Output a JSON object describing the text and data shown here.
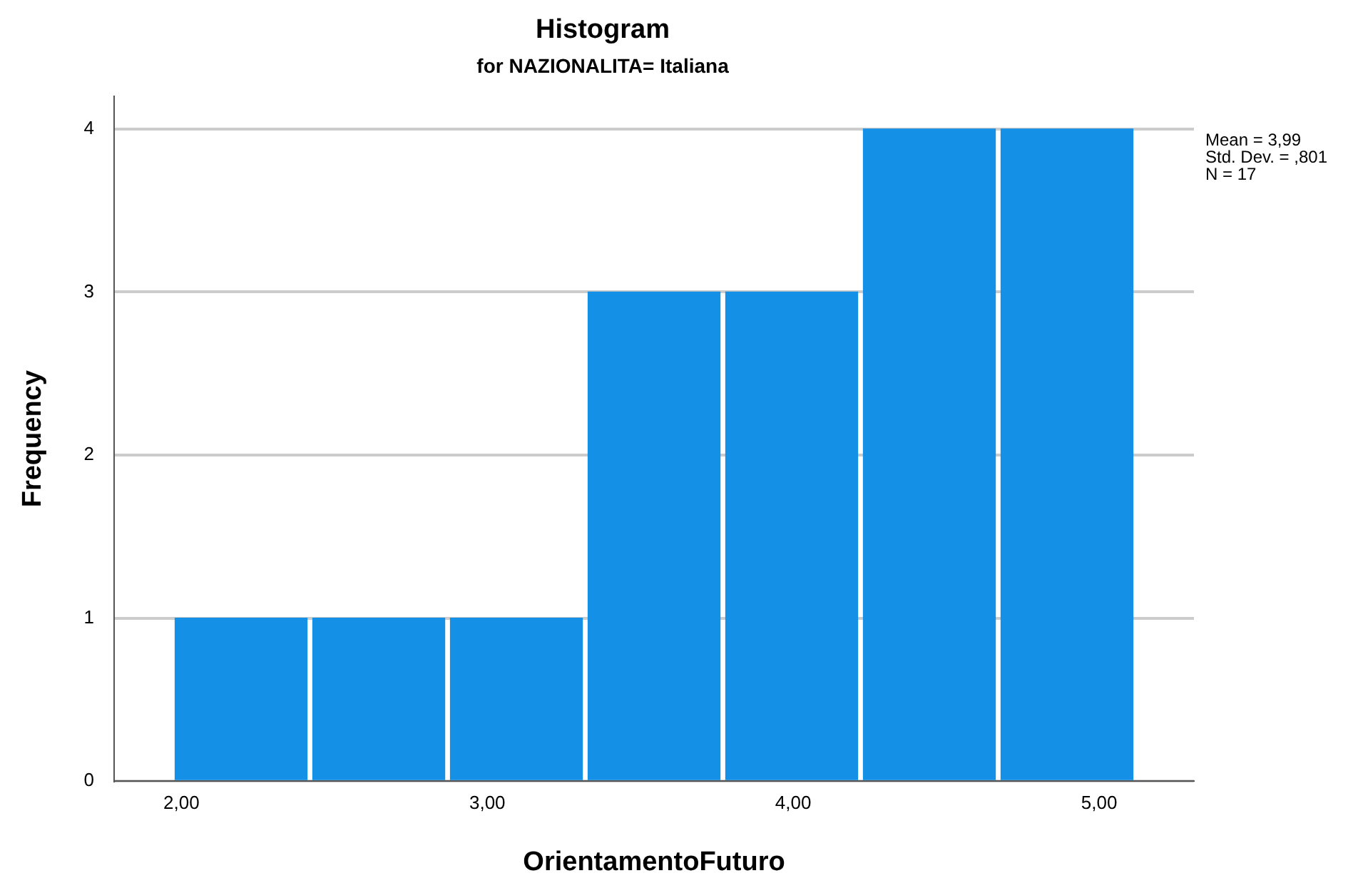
{
  "chart_data": {
    "type": "histogram",
    "title": "Histogram",
    "subtitle": "for NAZIONALITA= Italiana",
    "xlabel": "OrientamentoFuturo",
    "ylabel": "Frequency",
    "bins": [
      1.97,
      2.42,
      2.87,
      3.32,
      3.77,
      4.22,
      4.67,
      5.12
    ],
    "values": [
      1,
      1,
      1,
      3,
      3,
      4,
      4
    ],
    "color": "#1490e6",
    "xlim": [
      1.78,
      5.31
    ],
    "xticks": [
      {
        "value": 2,
        "label": "2,00"
      },
      {
        "value": 3,
        "label": "3,00"
      },
      {
        "value": 4,
        "label": "4,00"
      },
      {
        "value": 5,
        "label": "5,00"
      }
    ],
    "ylim": [
      0,
      4.2
    ],
    "yticks": [
      0,
      1,
      2,
      3,
      4
    ],
    "grid": "y",
    "legend": false,
    "annotations": [
      "Mean = 3,99",
      "Std. Dev. = ,801",
      "N = 17"
    ]
  }
}
